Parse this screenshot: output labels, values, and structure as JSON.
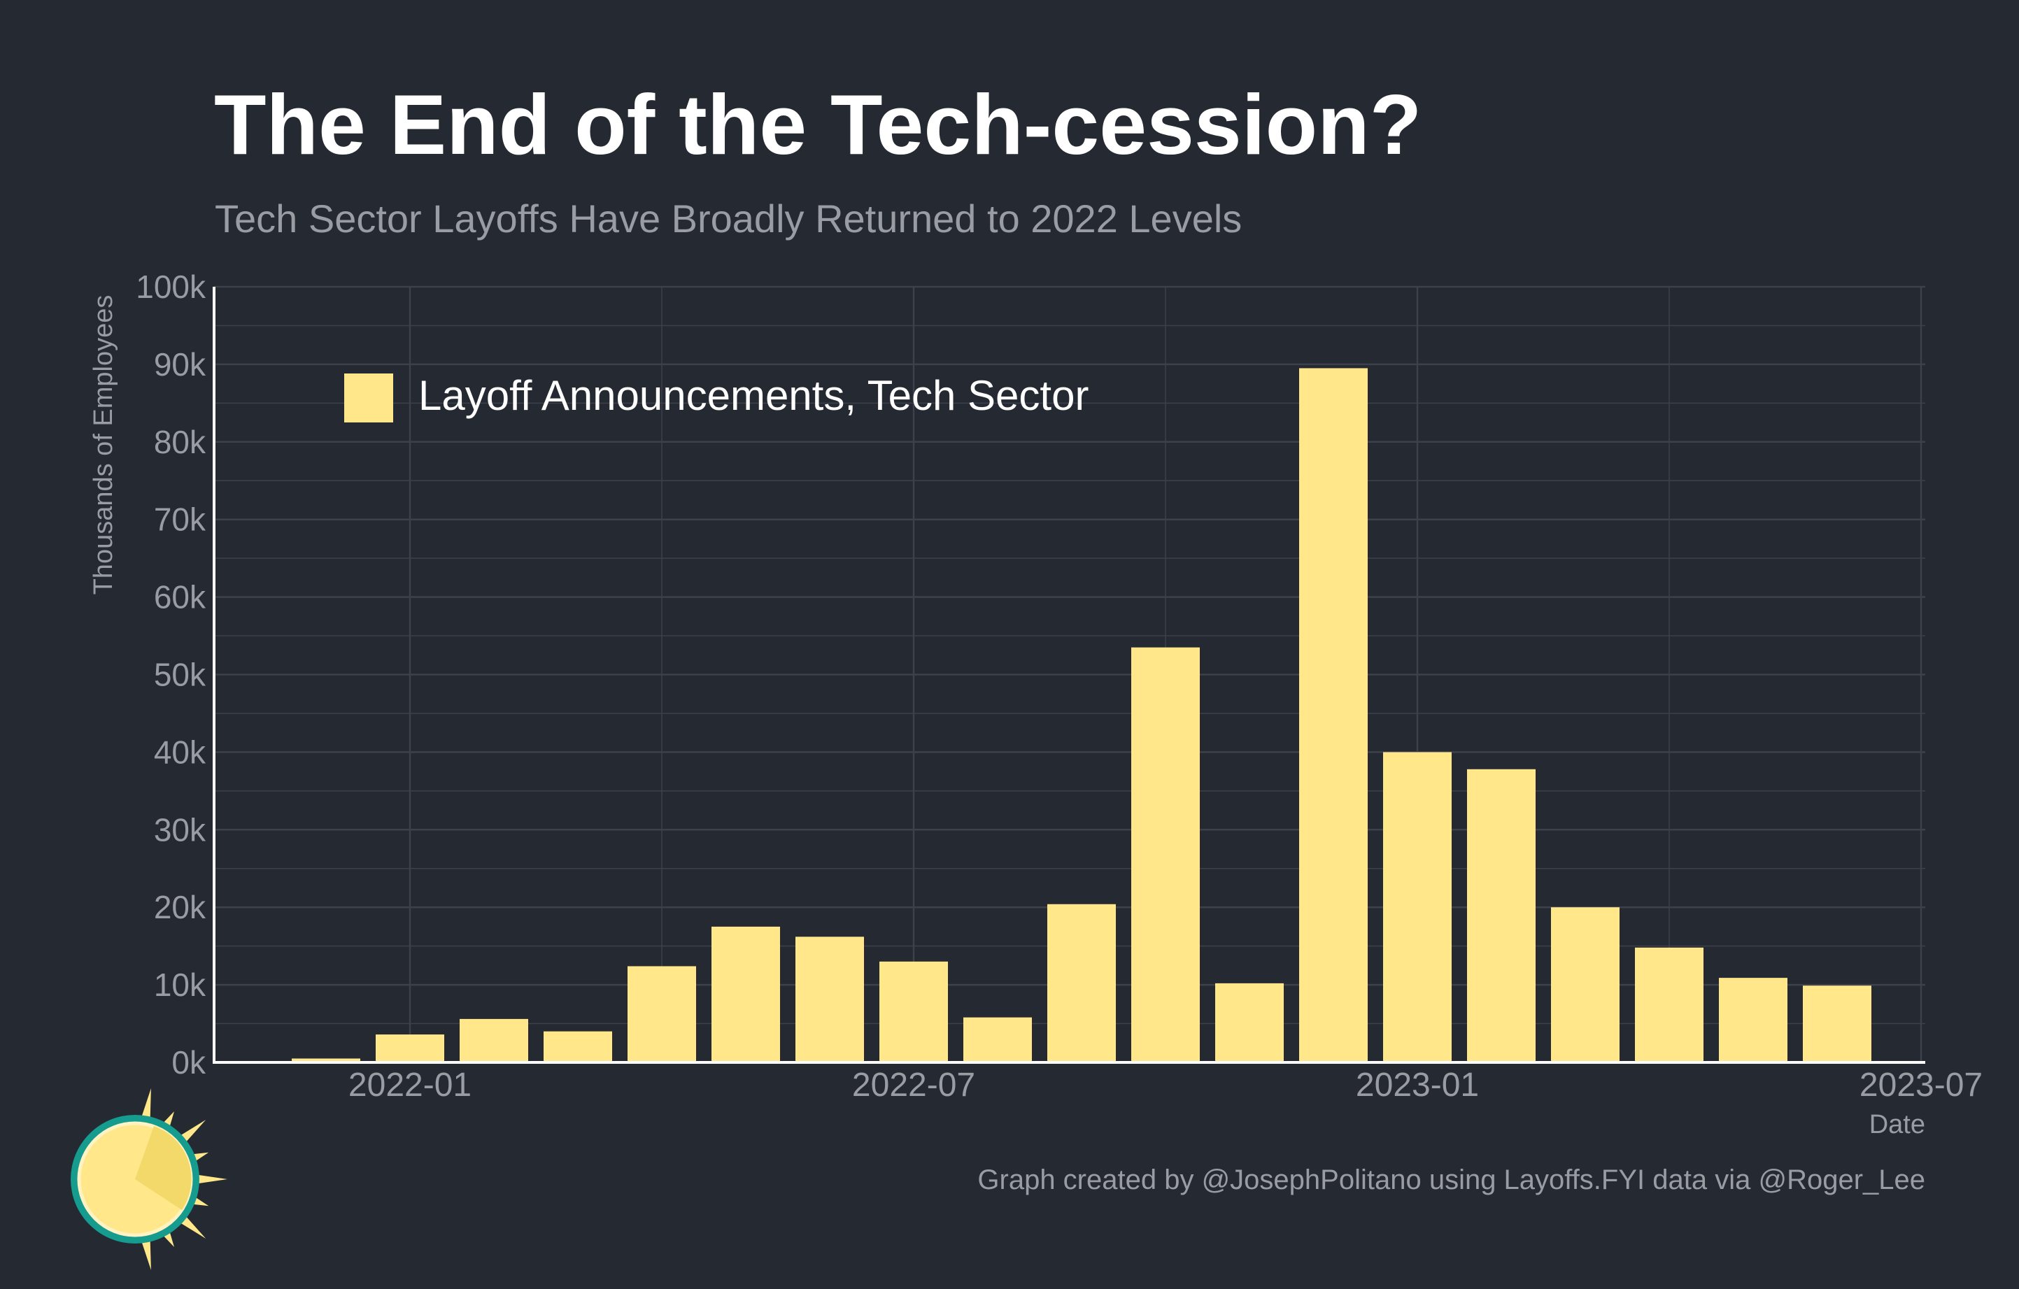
{
  "header": {
    "title": "The End of the Tech-cession?",
    "subtitle": "Tech Sector Layoffs Have Broadly Returned to 2022 Levels"
  },
  "footer": {
    "caption": "Graph created by @JosephPolitano using Layoffs.FYI data via @Roger_Lee"
  },
  "colors": {
    "background": "#252932",
    "bar": "#ffe78a",
    "grid": "#3d414b",
    "axis": "#ffffff",
    "muted_text": "#9a9ca3",
    "logo_ring": "#169c8e",
    "logo_sun": "#ffe78a"
  },
  "chart_data": {
    "type": "bar",
    "title": "The End of the Tech-cession?",
    "subtitle": "Tech Sector Layoffs Have Broadly Returned to 2022 Levels",
    "xlabel": "Date",
    "ylabel": "Thousands of Employees",
    "x": [
      "2021-12",
      "2022-01",
      "2022-02",
      "2022-03",
      "2022-04",
      "2022-05",
      "2022-06",
      "2022-07",
      "2022-08",
      "2022-09",
      "2022-10",
      "2022-11",
      "2022-12",
      "2023-01",
      "2023-02",
      "2023-03",
      "2023-04",
      "2023-05",
      "2023-06",
      "2023-07"
    ],
    "series": [
      {
        "name": "Layoff Announcements, Tech Sector",
        "values": [
          0.5,
          3.6,
          5.6,
          4.0,
          12.4,
          17.5,
          16.2,
          13.0,
          5.8,
          20.4,
          53.5,
          10.2,
          89.5,
          40.0,
          37.8,
          20.0,
          14.8,
          10.9,
          9.9,
          null
        ]
      }
    ],
    "x_ticks": [
      "2022-01",
      "2022-07",
      "2023-01",
      "2023-07"
    ],
    "y_ticks": [
      "0k",
      "10k",
      "20k",
      "30k",
      "40k",
      "50k",
      "60k",
      "70k",
      "80k",
      "90k",
      "100k"
    ],
    "ylim": [
      0,
      100
    ],
    "grid": true,
    "legend_position": "top-left"
  }
}
